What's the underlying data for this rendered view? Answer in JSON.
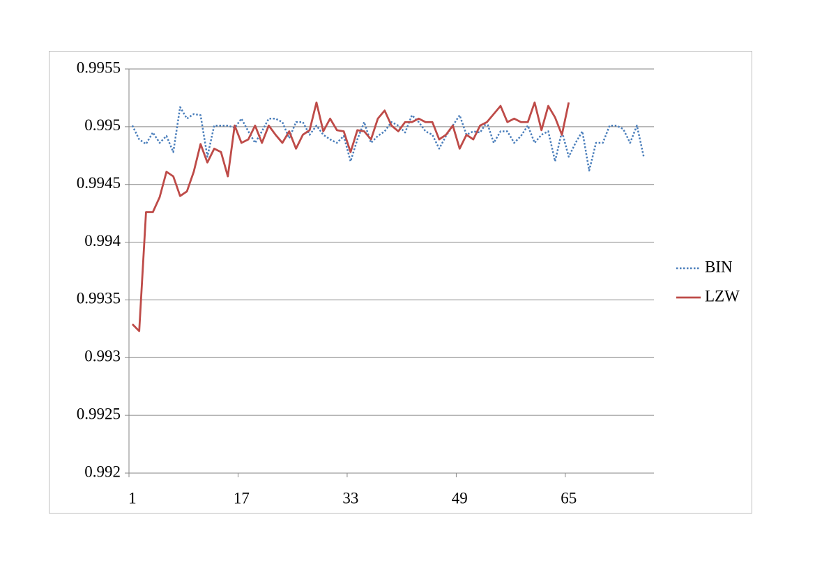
{
  "chart_data": {
    "type": "line",
    "categories": [
      1,
      null,
      null,
      null,
      null,
      null,
      null,
      null,
      null,
      null,
      null,
      null,
      null,
      null,
      null,
      null,
      17,
      null,
      null,
      null,
      null,
      null,
      null,
      null,
      null,
      null,
      null,
      null,
      null,
      null,
      null,
      null,
      33,
      null,
      null,
      null,
      null,
      null,
      null,
      null,
      null,
      null,
      null,
      null,
      null,
      null,
      null,
      null,
      49,
      null,
      null,
      null,
      null,
      null,
      null,
      null,
      null,
      null,
      null,
      null,
      null,
      null,
      null,
      null,
      65,
      null,
      null,
      null,
      null,
      null,
      null,
      null,
      null,
      null,
      null,
      null,
      null
    ],
    "series": [
      {
        "name": "BIN",
        "color": "#4a7ebb",
        "style": "dotted",
        "values": [
          0.99501,
          0.99489,
          0.99485,
          0.99495,
          0.99486,
          0.99492,
          0.99478,
          0.99517,
          0.99507,
          0.99511,
          0.9951,
          0.99474,
          0.99501,
          0.99501,
          0.99501,
          0.99499,
          0.99507,
          0.99496,
          0.99486,
          0.99496,
          0.99507,
          0.99507,
          0.99504,
          0.9949,
          0.99504,
          0.99504,
          0.99493,
          0.99501,
          0.99493,
          0.99489,
          0.99486,
          0.99492,
          0.9947,
          0.99489,
          0.99504,
          0.99486,
          0.99492,
          0.99496,
          0.99504,
          0.99501,
          0.99495,
          0.9951,
          0.99504,
          0.99496,
          0.99493,
          0.99481,
          0.99492,
          0.99501,
          0.9951,
          0.99493,
          0.99496,
          0.99495,
          0.99504,
          0.99486,
          0.99496,
          0.99496,
          0.99486,
          0.99492,
          0.99501,
          0.99486,
          0.99493,
          0.99496,
          0.9947,
          0.99496,
          0.99474,
          0.99486,
          0.99496,
          0.99462,
          0.99486,
          0.99486,
          0.99501,
          0.99501,
          0.99498,
          0.99486,
          0.99501,
          0.99474,
          null
        ]
      },
      {
        "name": "LZW",
        "color": "#be4b48",
        "style": "solid",
        "values": [
          0.99329,
          0.99323,
          0.99426,
          0.99426,
          0.99439,
          0.99461,
          0.99457,
          0.9944,
          0.99444,
          0.99461,
          0.99485,
          0.99469,
          0.99481,
          0.99478,
          0.99457,
          0.99501,
          0.99486,
          0.99489,
          0.99501,
          0.99486,
          0.99501,
          0.99493,
          0.99486,
          0.99496,
          0.99481,
          0.99493,
          0.99497,
          0.99521,
          0.99496,
          0.99507,
          0.99497,
          0.99496,
          0.99478,
          0.99497,
          0.99496,
          0.99489,
          0.99507,
          0.99514,
          0.99501,
          0.99496,
          0.99504,
          0.99504,
          0.99507,
          0.99504,
          0.99504,
          0.99489,
          0.99493,
          0.99501,
          0.99481,
          0.99493,
          0.99489,
          0.99501,
          0.99504,
          0.99511,
          0.99518,
          0.99504,
          0.99507,
          0.99504,
          0.99504,
          0.99521,
          0.99497,
          0.99518,
          0.99508,
          0.99493,
          0.99521,
          null,
          null,
          null,
          null,
          null,
          null,
          null,
          null,
          null,
          null,
          null,
          null
        ]
      }
    ],
    "ylim": [
      0.992,
      0.9955
    ],
    "yticks": [
      0.992,
      0.9925,
      0.993,
      0.9935,
      0.994,
      0.9945,
      0.995,
      0.9955
    ],
    "grid": true,
    "legend": "right"
  }
}
